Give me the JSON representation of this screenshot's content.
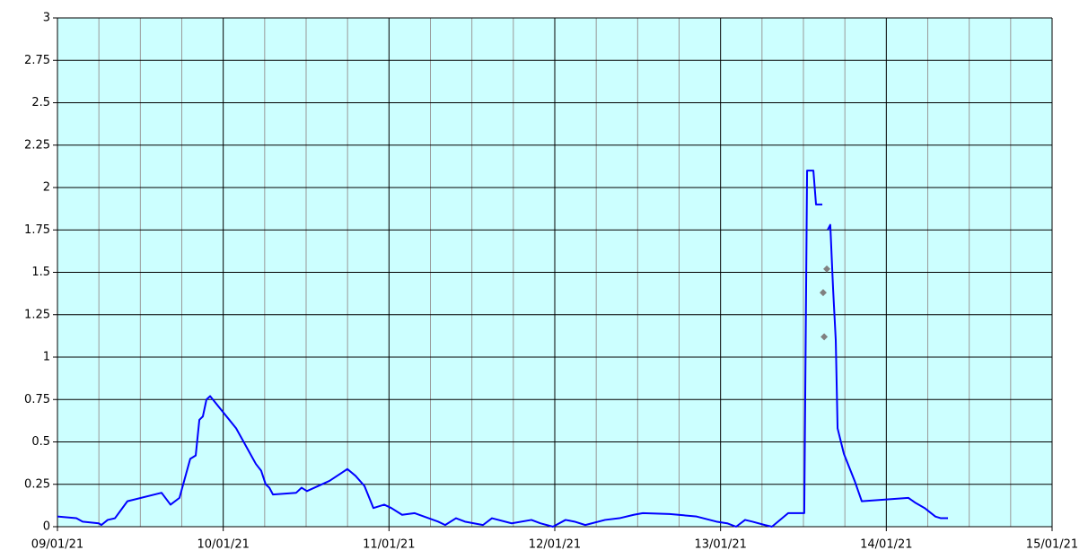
{
  "chart_data": {
    "type": "line",
    "x": [
      0,
      0.114,
      0.152,
      0.249,
      0.265,
      0.303,
      0.347,
      0.422,
      0.628,
      0.682,
      0.736,
      0.801,
      0.834,
      0.856,
      0.877,
      0.899,
      0.921,
      1.078,
      1.197,
      1.229,
      1.256,
      1.278,
      1.3,
      1.44,
      1.473,
      1.505,
      1.641,
      1.749,
      1.798,
      1.852,
      1.906,
      1.971,
      2.014,
      2.079,
      2.155,
      2.296,
      2.339,
      2.404,
      2.458,
      2.567,
      2.621,
      2.74,
      2.859,
      2.913,
      2.989,
      3.065,
      3.119,
      3.184,
      3.303,
      3.39,
      3.476,
      3.531,
      3.693,
      3.856,
      3.975,
      4.04,
      4.094,
      4.148,
      4.191,
      4.267,
      4.31,
      4.408,
      4.505,
      4.522,
      4.56,
      4.576,
      4.614,
      4.63,
      4.646,
      4.662,
      4.679,
      4.695,
      4.706,
      4.744,
      4.809,
      4.852,
      5.133,
      5.177,
      5.231,
      5.296,
      5.329,
      5.372
    ],
    "series": [
      {
        "color": "#0000ff",
        "values": [
          0.06,
          0.05,
          0.03,
          0.02,
          0.01,
          0.04,
          0.05,
          0.15,
          0.2,
          0.13,
          0.17,
          0.4,
          0.42,
          0.63,
          0.65,
          0.75,
          0.77,
          0.58,
          0.37,
          0.33,
          0.25,
          0.23,
          0.19,
          0.2,
          0.23,
          0.21,
          0.27,
          0.34,
          0.3,
          0.24,
          0.11,
          0.13,
          0.11,
          0.07,
          0.08,
          0.03,
          0.01,
          0.05,
          0.03,
          0.01,
          0.05,
          0.02,
          0.04,
          0.02,
          0,
          0.04,
          0.03,
          0.01,
          0.04,
          0.05,
          0.07,
          0.08,
          0.075,
          0.06,
          0.03,
          0.02,
          0,
          0.04,
          0.03,
          0.01,
          0,
          0.08,
          0.08,
          2.1,
          2.1,
          1.9,
          1.9,
          null,
          1.75,
          1.78,
          1.4,
          1.1,
          0.58,
          0.43,
          0.27,
          0.15,
          0.17,
          0.14,
          0.11,
          0.06,
          0.05,
          0.05
        ]
      }
    ],
    "points": {
      "color": "#808080",
      "x": [
        4.619,
        4.625,
        4.641
      ],
      "values": [
        1.38,
        1.12,
        1.52
      ]
    },
    "xlim": [
      0,
      6
    ],
    "xticks": [
      {
        "value": 0,
        "label": "09/01/21"
      },
      {
        "value": 1,
        "label": "10/01/21"
      },
      {
        "value": 2,
        "label": "11/01/21"
      },
      {
        "value": 3,
        "label": "12/01/21"
      },
      {
        "value": 4,
        "label": "13/01/21"
      },
      {
        "value": 5,
        "label": "14/01/21"
      },
      {
        "value": 6,
        "label": "15/01/21"
      }
    ],
    "xminorticks": [
      0.25,
      0.5,
      0.75,
      1.25,
      1.5,
      1.75,
      2.25,
      2.5,
      2.75,
      3.25,
      3.5,
      3.75,
      4.25,
      4.5,
      4.75,
      5.25,
      5.5,
      5.75
    ],
    "ylim": [
      0,
      3
    ],
    "yticks": [
      0,
      0.25,
      0.5,
      0.75,
      1,
      1.25,
      1.5,
      1.75,
      2,
      2.25,
      2.5,
      2.75,
      3
    ],
    "background": "#ccffff",
    "grid": true
  }
}
